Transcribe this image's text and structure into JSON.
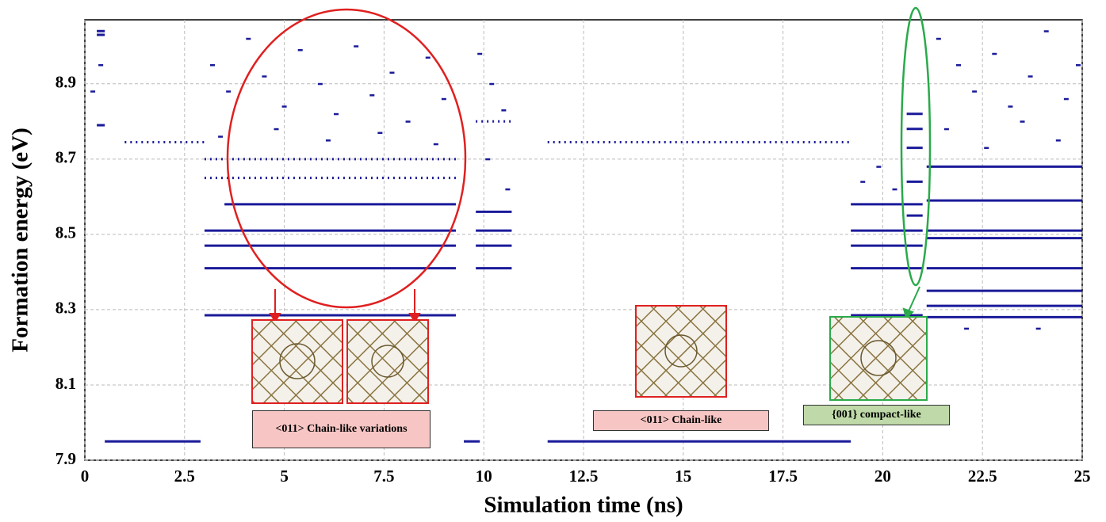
{
  "chart_data": {
    "type": "scatter",
    "x_label": "Simulation time (ns)",
    "y_label": "Formation energy (eV)",
    "xlim": [
      0,
      25
    ],
    "ylim": [
      7.9,
      9.07
    ],
    "xticks": [
      0,
      2.5,
      5,
      7.5,
      10,
      12.5,
      15,
      17.5,
      20,
      22.5,
      25
    ],
    "yticks": [
      7.9,
      8.1,
      8.3,
      8.5,
      8.7,
      8.9
    ],
    "grid": true,
    "color": "#1a1a9a",
    "segments": {
      "x0": [
        0.5,
        9.5,
        11.6,
        3.0,
        3.0,
        3.0,
        3.0,
        3.5,
        0.3,
        0.3,
        0.3,
        9.8,
        9.8,
        9.8,
        9.8,
        19.2,
        19.2,
        19.2,
        19.2,
        19.2,
        21.1,
        21.1,
        21.1,
        21.1,
        21.1,
        21.1,
        21.1,
        21.1,
        20.6,
        20.6,
        20.6,
        20.6,
        20.6
      ],
      "x1": [
        2.9,
        9.9,
        19.2,
        9.3,
        9.3,
        9.3,
        9.3,
        9.3,
        0.5,
        0.5,
        0.5,
        10.7,
        10.7,
        10.7,
        10.7,
        21.0,
        21.0,
        21.0,
        21.0,
        21.0,
        25.0,
        25.0,
        25.0,
        25.0,
        25.0,
        25.0,
        25.0,
        25.0,
        21.0,
        21.0,
        21.0,
        21.0,
        21.0
      ],
      "y": [
        7.95,
        7.95,
        7.95,
        8.285,
        8.41,
        8.47,
        8.51,
        8.58,
        9.04,
        9.03,
        8.79,
        8.41,
        8.47,
        8.51,
        8.56,
        8.285,
        8.41,
        8.47,
        8.51,
        8.58,
        8.28,
        8.31,
        8.35,
        8.41,
        8.49,
        8.51,
        8.59,
        8.68,
        8.55,
        8.64,
        8.73,
        8.78,
        8.82
      ]
    },
    "dotted_segments": {
      "x0": [
        1.0,
        11.6,
        3.0,
        3.0,
        9.8
      ],
      "x1": [
        3.0,
        19.2,
        9.3,
        9.3,
        10.7
      ],
      "y": [
        8.745,
        8.745,
        8.65,
        8.7,
        8.8
      ]
    },
    "points": {
      "x": [
        3.2,
        3.6,
        4.1,
        4.5,
        5.0,
        5.4,
        5.9,
        6.3,
        6.8,
        7.2,
        7.7,
        8.1,
        8.6,
        9.0,
        3.4,
        4.8,
        6.1,
        7.4,
        8.8,
        9.9,
        10.2,
        10.5,
        10.1,
        10.6,
        19.5,
        19.9,
        20.3,
        21.4,
        21.9,
        22.3,
        22.8,
        23.2,
        23.7,
        24.1,
        24.6,
        24.9,
        21.6,
        22.6,
        23.5,
        24.4,
        22.1,
        23.9,
        0.2,
        0.4
      ],
      "y": [
        8.95,
        8.88,
        9.02,
        8.92,
        8.84,
        8.99,
        8.9,
        8.82,
        9.0,
        8.87,
        8.93,
        8.8,
        8.97,
        8.86,
        8.76,
        8.78,
        8.75,
        8.77,
        8.74,
        8.98,
        8.9,
        8.83,
        8.7,
        8.62,
        8.64,
        8.68,
        8.62,
        9.02,
        8.95,
        8.88,
        8.98,
        8.84,
        8.92,
        9.04,
        8.86,
        8.95,
        8.78,
        8.73,
        8.8,
        8.75,
        8.25,
        8.25,
        8.88,
        8.95
      ]
    },
    "annotations": [
      "<011> Chain-like variations",
      "<011> Chain-like",
      "{001} compact-like"
    ]
  }
}
